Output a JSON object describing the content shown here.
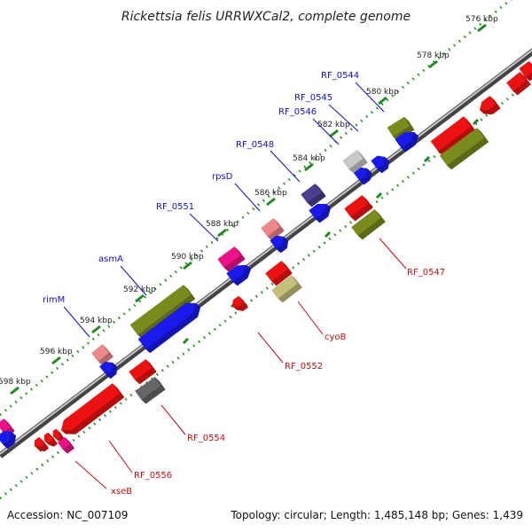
{
  "title": "Rickettsia felis URRWXCal2, complete genome",
  "accession_text": "Accession: NC_007109",
  "topology_text": "Topology: circular; Length: 1,485,148 bp; Genes: 1,439",
  "colors": {
    "red": "#ee1111",
    "blue": "#1a1aee",
    "olive": "#7a8a1c",
    "magenta": "#ee1188",
    "pink": "#ee8888",
    "gray": "#666666",
    "lightgray": "#c8c8c8",
    "purple": "#4a3f8c",
    "khaki": "#c2c07a",
    "tick_green": "#228822",
    "fwd_label": "#1010c0",
    "rev_label": "#c01010"
  },
  "ticks": [
    "576 kbp",
    "578 kbp",
    "580 kbp",
    "582 kbp",
    "584 kbp",
    "586 kbp",
    "588 kbp",
    "590 kbp",
    "592 kbp",
    "594 kbp",
    "596 kbp",
    "598 kbp"
  ],
  "gene_labels_forward": [
    "RF_0544",
    "RF_0545",
    "RF_0546",
    "RF_0548",
    "rpsD",
    "RF_0551",
    "asmA",
    "rimM"
  ],
  "gene_labels_reverse": [
    "RF_0547",
    "cyoB",
    "RF_0552",
    "RF_0554",
    "RF_0556",
    "xseB"
  ]
}
